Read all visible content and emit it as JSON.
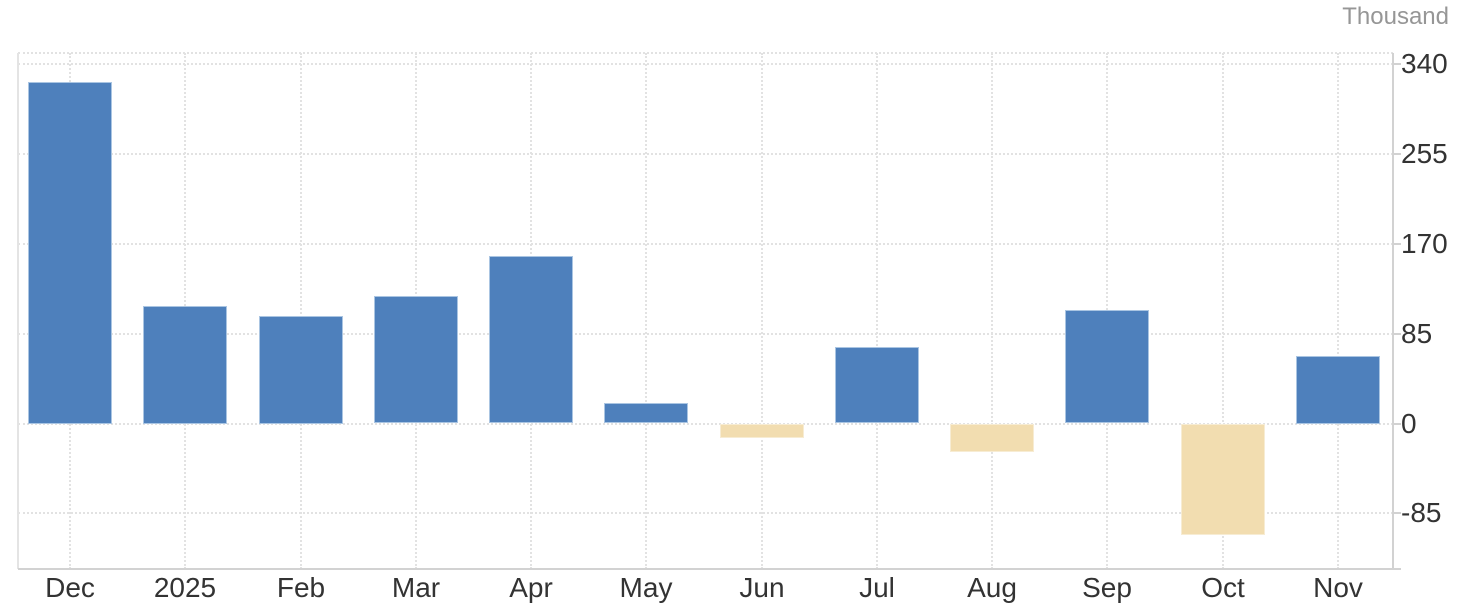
{
  "chart_data": {
    "type": "bar",
    "title": "",
    "unit": "Thousand",
    "categories": [
      "Dec",
      "2025",
      "Feb",
      "Mar",
      "Apr",
      "May",
      "Jun",
      "Jul",
      "Aug",
      "Sep",
      "Oct",
      "Nov"
    ],
    "values": [
      323,
      111,
      102,
      120,
      158,
      19,
      -13,
      72,
      -26,
      107,
      -105,
      64
    ],
    "yticks": [
      340,
      255,
      170,
      85,
      0,
      -85
    ],
    "ylim": [
      -138,
      349
    ],
    "grid": true,
    "legend_position": "none",
    "yaxis_side": "right",
    "colors": {
      "positive_bar": "#4e80bc",
      "negative_bar": "#f2ddb0",
      "positive_bar_border": "#aac5e2",
      "negative_bar_border": "#f7ecd3",
      "gridline": "#e2e2e2",
      "axis_line": "#d2d2d2",
      "plot_side_border": "#e4e4e4",
      "tick_label": "#333333",
      "unit_label": "#969696"
    }
  }
}
